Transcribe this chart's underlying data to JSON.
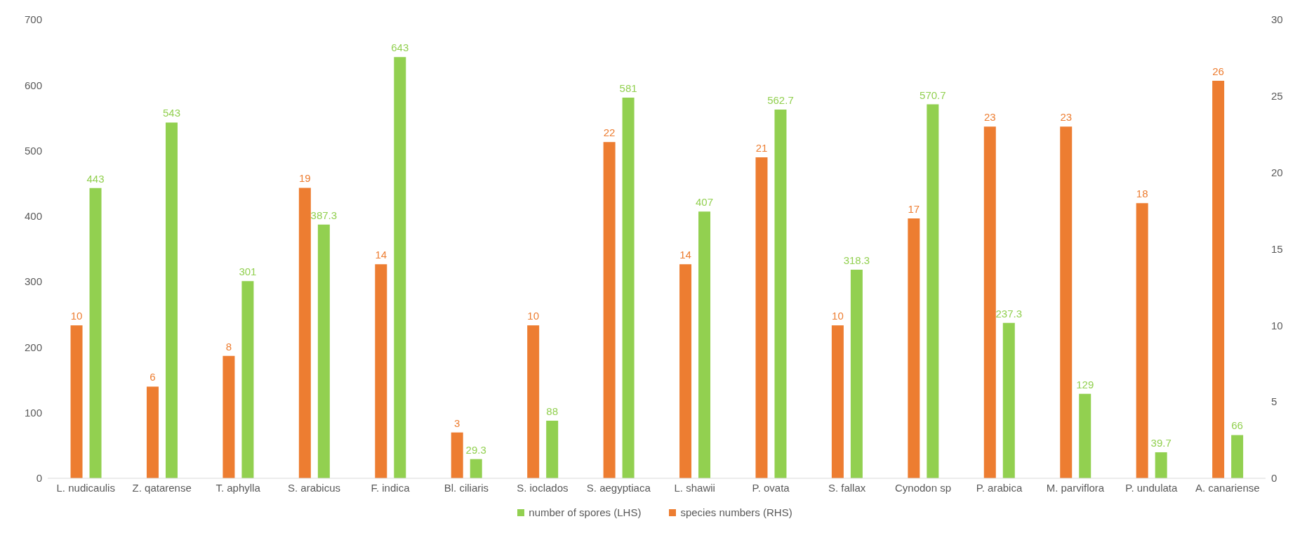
{
  "chart_data": {
    "type": "bar",
    "categories": [
      "L. nudicaulis",
      "Z. qatarense",
      "T. aphylla",
      "S. arabicus",
      "F. indica",
      "Bl. ciliaris",
      "S. ioclados",
      "S. aegyptiaca",
      "L. shawii",
      "P. ovata",
      "S. fallax",
      "Cynodon sp",
      "P. arabica",
      "M. parviflora",
      "P. undulata",
      "A. canariense"
    ],
    "series": [
      {
        "name": "species numbers (RHS)",
        "color": "#ed7d31",
        "axis": "y2",
        "values": [
          10,
          6,
          8,
          19,
          14,
          3,
          10,
          22,
          14,
          21,
          10,
          17,
          23,
          23,
          18,
          26
        ]
      },
      {
        "name": "number of spores (LHS)",
        "color": "#92d050",
        "values": [
          443,
          543,
          301,
          387.3,
          643,
          29.3,
          88,
          581,
          407,
          562.7,
          318.3,
          570.7,
          237.3,
          129,
          39.7,
          66
        ]
      }
    ],
    "ylim": [
      0,
      700
    ],
    "yticks": [
      0,
      100,
      200,
      300,
      400,
      500,
      600,
      700
    ],
    "y2lim": [
      0,
      30
    ],
    "y2ticks": [
      0,
      5,
      10,
      15,
      20,
      25,
      30
    ],
    "data_labels": true,
    "legend": "bottom"
  }
}
